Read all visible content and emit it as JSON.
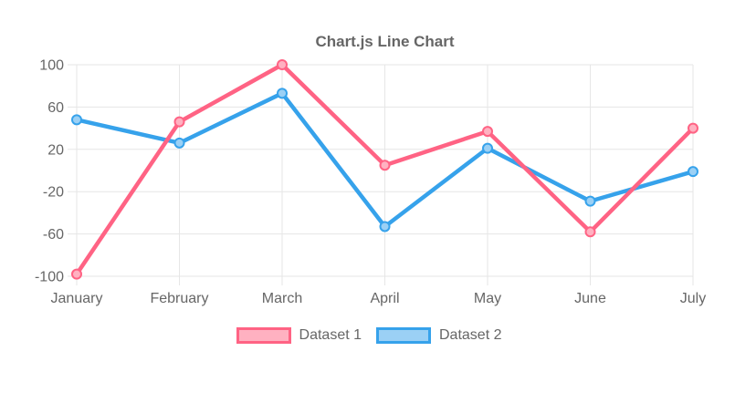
{
  "chart_data": {
    "type": "line",
    "title": "Chart.js Line Chart",
    "categories": [
      "January",
      "February",
      "March",
      "April",
      "May",
      "June",
      "July"
    ],
    "series": [
      {
        "name": "Dataset 1",
        "line_color": "#ff6384",
        "fill_color": "#ffb1c1",
        "values": [
          -98,
          46,
          100,
          5,
          37,
          -58,
          40
        ]
      },
      {
        "name": "Dataset 2",
        "line_color": "#36a2eb",
        "fill_color": "#9bd0f5",
        "values": [
          48,
          26,
          73,
          -53,
          21,
          -29,
          -1
        ]
      }
    ],
    "xlabel": "",
    "ylabel": "",
    "ylim": [
      -100,
      100
    ],
    "y_ticks": [
      100,
      60,
      20,
      -20,
      -60,
      -100
    ],
    "grid": true,
    "legend_position": "bottom",
    "text_color": "#666666",
    "grid_color": "#e6e6e6"
  }
}
